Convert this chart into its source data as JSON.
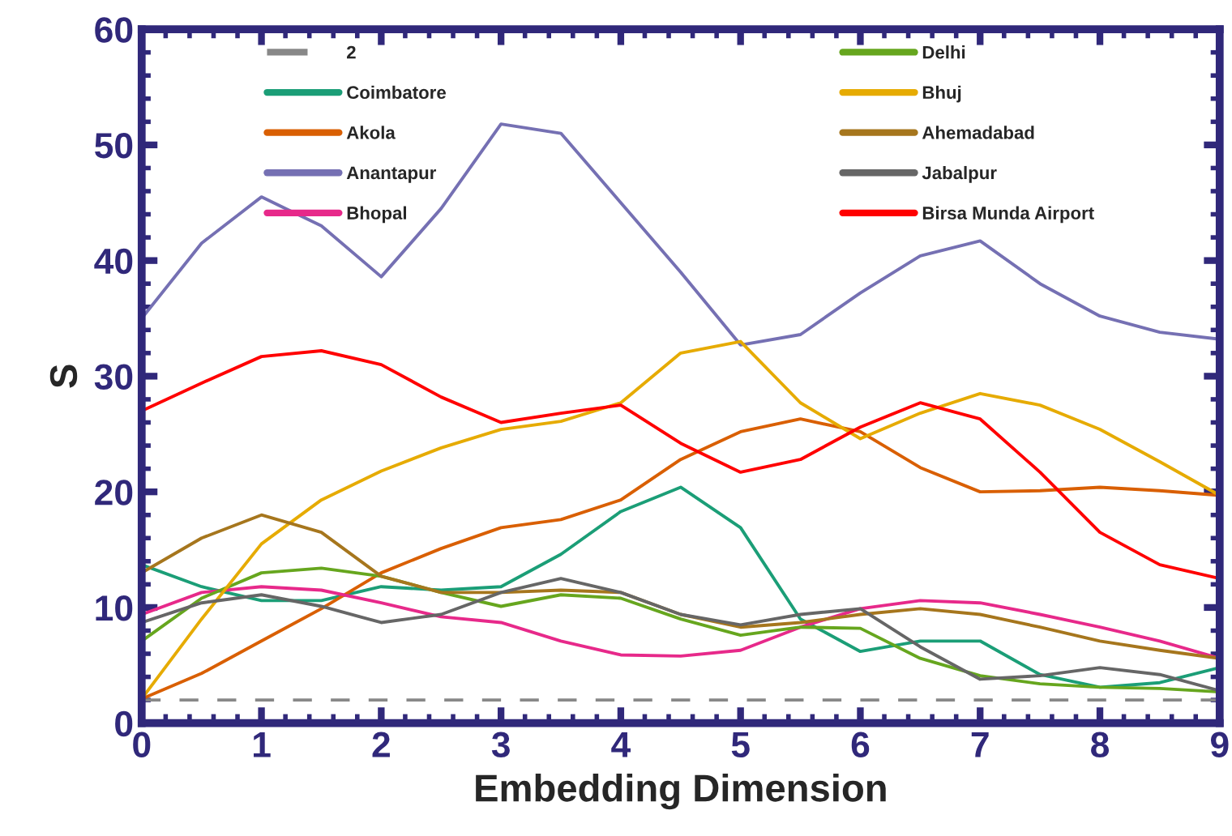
{
  "chart_data": {
    "type": "line",
    "xlabel": "Embedding Dimension",
    "ylabel": "S",
    "x": [
      0,
      0.5,
      1,
      1.5,
      2,
      2.5,
      3,
      3.5,
      4,
      4.5,
      5,
      5.5,
      6,
      6.5,
      7,
      7.5,
      8,
      8.5,
      9
    ],
    "xlim": [
      0,
      9
    ],
    "xticks": [
      0,
      1,
      2,
      3,
      4,
      5,
      6,
      7,
      8,
      9
    ],
    "ylim": [
      0,
      60
    ],
    "yticks": [
      0,
      10,
      20,
      30,
      40,
      50,
      60
    ],
    "legend": "top",
    "grid": false,
    "marker": "none",
    "series": [
      {
        "name": "2",
        "color": "#888888",
        "line_style": "dashed",
        "x": [
          0,
          9
        ],
        "values": [
          2,
          2
        ]
      },
      {
        "name": "Coimbatore",
        "color": "#1b9e77",
        "values": [
          13.7,
          11.8,
          10.6,
          10.6,
          11.8,
          11.5,
          11.8,
          14.6,
          18.3,
          20.4,
          16.9,
          9,
          6.2,
          7.1,
          7.1,
          4.2,
          3.1,
          3.5,
          4.8
        ]
      },
      {
        "name": "Akola",
        "color": "#d95f02",
        "values": [
          2.1,
          4.3,
          7.1,
          9.9,
          13,
          15.1,
          16.9,
          17.6,
          19.3,
          22.8,
          25.2,
          26.3,
          25.2,
          22.1,
          20,
          20.1,
          20.4,
          20.1,
          19.7
        ]
      },
      {
        "name": "Anantapur",
        "color": "#7570b3",
        "values": [
          35,
          41.5,
          45.5,
          43,
          38.6,
          44.5,
          51.8,
          51,
          45,
          39,
          32.7,
          33.6,
          37.2,
          40.4,
          41.7,
          38,
          35.2,
          33.8,
          33.2
        ]
      },
      {
        "name": "Bhopal",
        "color": "#e7298a",
        "values": [
          9.4,
          11.3,
          11.8,
          11.5,
          10.4,
          9.2,
          8.7,
          7.1,
          5.9,
          5.8,
          6.3,
          8.3,
          9.9,
          10.6,
          10.4,
          9.4,
          8.3,
          7.1,
          5.6
        ]
      },
      {
        "name": "Delhi",
        "color": "#66a61e",
        "values": [
          7.1,
          10.8,
          13,
          13.4,
          12.7,
          11.3,
          10.1,
          11.1,
          10.8,
          9,
          7.6,
          8.3,
          8.2,
          5.6,
          4.1,
          3.4,
          3.1,
          3,
          2.7
        ]
      },
      {
        "name": "Bhuj",
        "color": "#e6ab02",
        "values": [
          2.1,
          9,
          15.5,
          19.3,
          21.8,
          23.8,
          25.4,
          26.1,
          27.7,
          32,
          33,
          27.7,
          24.6,
          26.8,
          28.5,
          27.5,
          25.4,
          22.6,
          19.7
        ]
      },
      {
        "name": "Ahemadabad",
        "color": "#a6761d",
        "values": [
          13,
          16,
          18,
          16.5,
          12.7,
          11.3,
          11.3,
          11.5,
          11.3,
          9.4,
          8.3,
          8.7,
          9.4,
          9.9,
          9.4,
          8.3,
          7.1,
          6.3,
          5.6
        ]
      },
      {
        "name": "Jabalpur",
        "color": "#666666",
        "values": [
          8.7,
          10.4,
          11.1,
          10.1,
          8.7,
          9.4,
          11.3,
          12.5,
          11.3,
          9.4,
          8.5,
          9.4,
          9.9,
          6.6,
          3.8,
          4.1,
          4.8,
          4.2,
          2.8
        ]
      },
      {
        "name": "Birsa Munda Airport",
        "color": "#ff0000",
        "values": [
          27,
          29.4,
          31.7,
          32.2,
          31,
          28.2,
          26,
          26.8,
          27.5,
          24.2,
          21.7,
          22.8,
          25.6,
          27.7,
          26.3,
          21.7,
          16.5,
          13.7,
          12.5
        ]
      }
    ]
  }
}
